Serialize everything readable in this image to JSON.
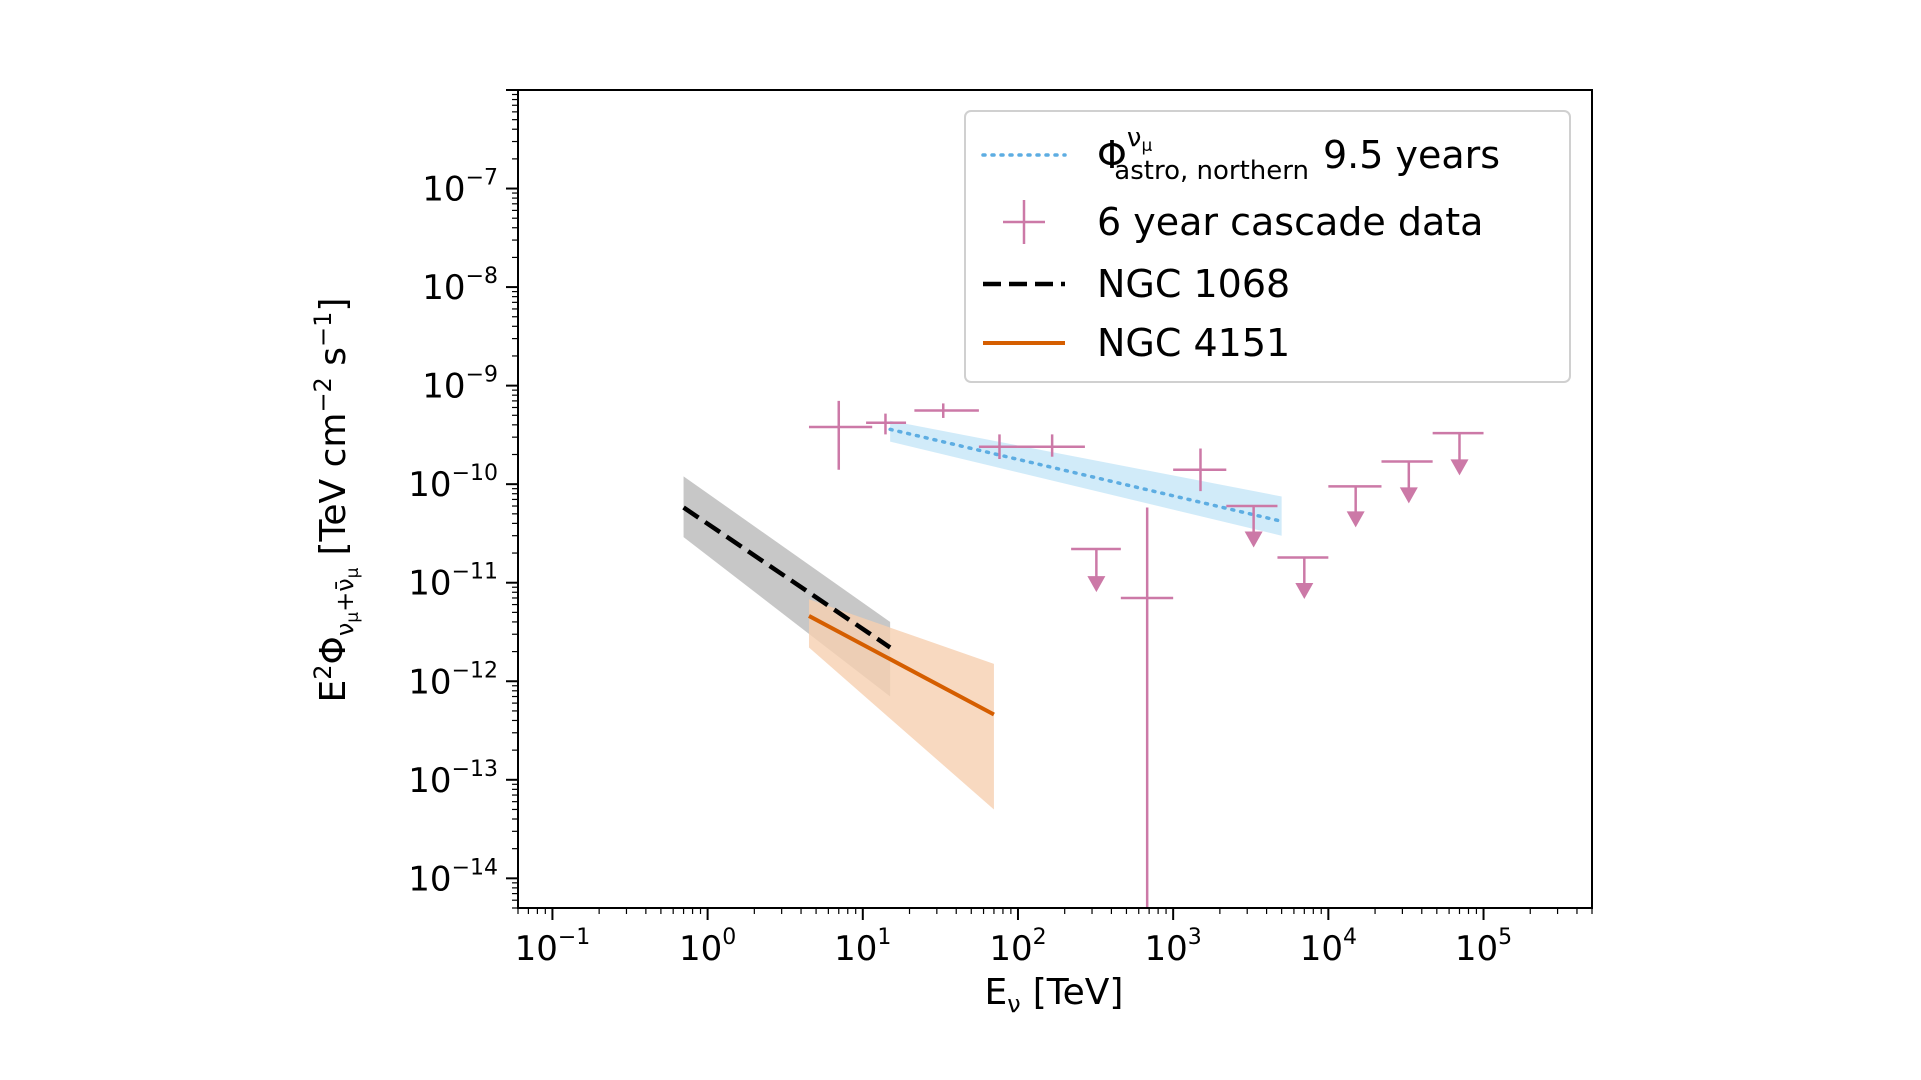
{
  "chart_data": {
    "type": "line",
    "title": "",
    "xlabel": {
      "main": "E",
      "sub": "ν",
      "unit": "[TeV]"
    },
    "ylabel": {
      "main": "E",
      "sup": "2",
      "phi": "Φ",
      "sub": "ν",
      "subsub": "μ",
      "plus": "+",
      "bar": "ν̄",
      "unit": "[TeV cm",
      "unit_exp1": "−2",
      "unit_mid": " s",
      "unit_exp2": "−1",
      "unit_end": "]"
    },
    "xscale": "log",
    "yscale": "log",
    "xlim": [
      0.06,
      500000
    ],
    "ylim": [
      5e-15,
      1e-06
    ],
    "x_ticks": [
      {
        "base": "10",
        "exp": "−1",
        "value": 0.1
      },
      {
        "base": "10",
        "exp": "0",
        "value": 1
      },
      {
        "base": "10",
        "exp": "1",
        "value": 10
      },
      {
        "base": "10",
        "exp": "2",
        "value": 100
      },
      {
        "base": "10",
        "exp": "3",
        "value": 1000
      },
      {
        "base": "10",
        "exp": "4",
        "value": 10000
      },
      {
        "base": "10",
        "exp": "5",
        "value": 100000
      }
    ],
    "y_ticks": [
      {
        "base": "10",
        "exp": "−7",
        "value": 1e-07
      },
      {
        "base": "10",
        "exp": "−8",
        "value": 1e-08
      },
      {
        "base": "10",
        "exp": "−9",
        "value": 1e-09
      },
      {
        "base": "10",
        "exp": "−10",
        "value": 1e-10
      },
      {
        "base": "10",
        "exp": "−11",
        "value": 1e-11
      },
      {
        "base": "10",
        "exp": "−12",
        "value": 1e-12
      },
      {
        "base": "10",
        "exp": "−13",
        "value": 1e-13
      },
      {
        "base": "10",
        "exp": "−14",
        "value": 1e-14
      }
    ],
    "grid": false,
    "legend_position": "top-right",
    "legend": [
      {
        "style": "dotted",
        "color": "#5dade2",
        "label_main": "Φ",
        "label_sup": "ν",
        "label_supsub": "μ",
        "label_sub": "astro, northern",
        "label_rest": "9.5 years"
      },
      {
        "style": "cross",
        "color": "#cc79a7",
        "label": "6 year cascade data"
      },
      {
        "style": "dashed",
        "color": "#000000",
        "label": "NGC 1068"
      },
      {
        "style": "solid",
        "color": "#d55e00",
        "label": "NGC 4151"
      }
    ],
    "series": [
      {
        "name": "northern 9.5 years",
        "style": "dotted",
        "color": "#5dade2",
        "band_color": "#c6e6f7",
        "x": [
          15,
          5000
        ],
        "y": [
          3.6e-10,
          4.2e-11
        ],
        "band_lower": [
          2.7e-10,
          3e-11
        ],
        "band_upper": [
          4.4e-10,
          7.5e-11
        ]
      },
      {
        "name": "NGC 1068",
        "style": "dashed",
        "color": "#000000",
        "band_color": "#bdbdbd",
        "x": [
          0.7,
          15
        ],
        "y": [
          5.8e-11,
          2.2e-12
        ],
        "band_lower": [
          2.9e-11,
          7e-13
        ],
        "band_upper": [
          1.2e-10,
          4e-12
        ]
      },
      {
        "name": "NGC 4151",
        "style": "solid",
        "color": "#d55e00",
        "band_color": "#f6cfb0",
        "x": [
          4.5,
          70
        ],
        "y": [
          4.6e-12,
          4.6e-13
        ],
        "band_lower": [
          2.2e-12,
          5e-14
        ],
        "band_upper": [
          6.8e-12,
          1.5e-12
        ]
      }
    ],
    "cascade_points": [
      {
        "x": 7.0,
        "xlo": 4.5,
        "xhi": 11.5,
        "y": 3.8e-10,
        "ylo": 1.4e-10,
        "yhi": 7e-10
      },
      {
        "x": 14.0,
        "xlo": 10.5,
        "xhi": 19.0,
        "y": 4.2e-10,
        "ylo": 3.2e-10,
        "yhi": 5.2e-10
      },
      {
        "x": 33.0,
        "xlo": 21.5,
        "xhi": 56.0,
        "y": 5.6e-10,
        "ylo": 4.7e-10,
        "yhi": 6.6e-10
      },
      {
        "x": 76.0,
        "xlo": 56.0,
        "xhi": 100.0,
        "y": 2.4e-10,
        "ylo": 1.8e-10,
        "yhi": 3.2e-10
      },
      {
        "x": 166.0,
        "xlo": 100.0,
        "xhi": 270.0,
        "y": 2.4e-10,
        "ylo": 1.9e-10,
        "yhi": 3.2e-10
      },
      {
        "x": 680.0,
        "xlo": 460.0,
        "xhi": 1000.0,
        "y": 7e-12,
        "ylo": 5e-15,
        "yhi": 5.8e-11
      },
      {
        "x": 1500.0,
        "xlo": 1000.0,
        "xhi": 2200.0,
        "y": 1.4e-10,
        "ylo": 8.5e-11,
        "yhi": 2.3e-10
      }
    ],
    "upper_limits": [
      {
        "x": 320.0,
        "xlo": 220.0,
        "xhi": 460.0,
        "y": 2.2e-11,
        "yarrow": 8.8e-12
      },
      {
        "x": 3300.0,
        "xlo": 2200.0,
        "xhi": 4700.0,
        "y": 6e-11,
        "yarrow": 2.5e-11
      },
      {
        "x": 7000.0,
        "xlo": 4700.0,
        "xhi": 10000.0,
        "y": 1.8e-11,
        "yarrow": 7.5e-12
      },
      {
        "x": 15000.0,
        "xlo": 10000.0,
        "xhi": 22000.0,
        "y": 9.5e-11,
        "yarrow": 4e-11
      },
      {
        "x": 33000.0,
        "xlo": 22000.0,
        "xhi": 47000.0,
        "y": 1.7e-10,
        "yarrow": 7e-11
      },
      {
        "x": 70000.0,
        "xlo": 47000.0,
        "xhi": 100000.0,
        "y": 3.3e-10,
        "yarrow": 1.35e-10
      }
    ]
  }
}
